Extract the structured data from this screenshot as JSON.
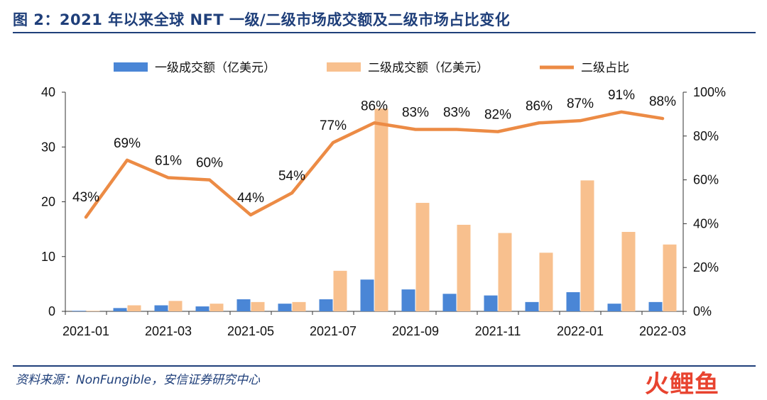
{
  "title": "图 2：2021 年以来全球 NFT 一级/二级市场成交额及二级市场占比变化",
  "source": "资料来源：NonFungible，安信证券研究中心",
  "watermark": "火鲤鱼",
  "colors": {
    "primary": "#4a86d6",
    "secondary": "#f8c08e",
    "ratio": "#ec8b45",
    "accent": "#1f3f7a"
  },
  "chart_data": {
    "type": "bar",
    "categories": [
      "2021-01",
      "2021-02",
      "2021-03",
      "2021-04",
      "2021-05",
      "2021-06",
      "2021-07",
      "2021-08",
      "2021-09",
      "2021-10",
      "2021-11",
      "2021-12",
      "2022-01",
      "2022-02",
      "2022-03"
    ],
    "x_tick_labels": [
      "2021-01",
      "2021-03",
      "2021-05",
      "2021-07",
      "2021-09",
      "2021-11",
      "2022-01",
      "2022-03"
    ],
    "series": [
      {
        "name": "一级成交额（亿美元）",
        "type": "bar",
        "axis": "left",
        "values": [
          0.1,
          0.6,
          1.1,
          0.9,
          2.2,
          1.4,
          2.2,
          5.8,
          4.0,
          3.2,
          2.9,
          1.7,
          3.5,
          1.4,
          1.7
        ]
      },
      {
        "name": "二级成交额（亿美元）",
        "type": "bar",
        "axis": "left",
        "values": [
          0.1,
          1.1,
          1.9,
          1.4,
          1.7,
          1.7,
          7.4,
          37.0,
          19.8,
          15.8,
          14.3,
          10.7,
          23.9,
          14.5,
          12.2
        ]
      },
      {
        "name": "二级占比",
        "type": "line",
        "axis": "right",
        "values": [
          43,
          69,
          61,
          60,
          44,
          54,
          77,
          86,
          83,
          83,
          82,
          86,
          87,
          91,
          88
        ],
        "labels": [
          "43%",
          "69%",
          "61%",
          "60%",
          "44%",
          "54%",
          "77%",
          "86%",
          "83%",
          "83%",
          "82%",
          "86%",
          "87%",
          "91%",
          "88%"
        ]
      }
    ],
    "y_left": {
      "range": [
        0,
        40
      ],
      "ticks": [
        "0",
        "10",
        "20",
        "30",
        "40"
      ]
    },
    "y_right": {
      "range": [
        0,
        100
      ],
      "ticks": [
        "0%",
        "20%",
        "40%",
        "60%",
        "80%",
        "100%"
      ]
    },
    "legend_position": "top-center",
    "grid": false
  }
}
